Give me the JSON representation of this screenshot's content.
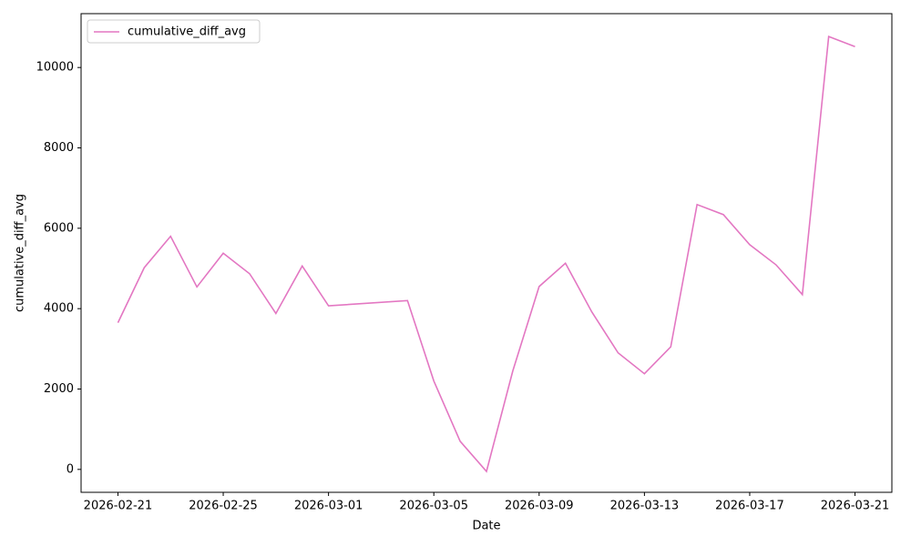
{
  "chart_data": {
    "type": "line",
    "x_label": "Date",
    "y_label": "cumulative_diff_avg",
    "x": [
      "2026-02-21",
      "2026-02-22",
      "2026-02-23",
      "2026-02-24",
      "2026-02-25",
      "2026-02-26",
      "2026-02-27",
      "2026-02-28",
      "2026-03-01",
      "2026-03-04",
      "2026-03-05",
      "2026-03-06",
      "2026-03-07",
      "2026-03-08",
      "2026-03-09",
      "2026-03-10",
      "2026-03-11",
      "2026-03-12",
      "2026-03-13",
      "2026-03-14",
      "2026-03-15",
      "2026-03-16",
      "2026-03-17",
      "2026-03-18",
      "2026-03-19",
      "2026-03-20",
      "2026-03-21"
    ],
    "series": [
      {
        "name": "cumulative_diff_avg",
        "color": "#e377c2",
        "values": [
          3650,
          5020,
          5800,
          4540,
          5380,
          4870,
          3880,
          5060,
          4070,
          4200,
          2200,
          700,
          -50,
          2450,
          4550,
          5130,
          3920,
          2900,
          2380,
          3050,
          6590,
          6340,
          5590,
          5090,
          4350,
          10770,
          10520
        ]
      }
    ],
    "ylim": [
      -570,
      11340
    ],
    "yticks": [
      0,
      2000,
      4000,
      6000,
      8000,
      10000
    ],
    "xticks": [
      "2026-02-21",
      "2026-02-25",
      "2026-03-01",
      "2026-03-05",
      "2026-03-09",
      "2026-03-13",
      "2026-03-17",
      "2026-03-21"
    ],
    "legend": "upper left",
    "grid": false
  }
}
